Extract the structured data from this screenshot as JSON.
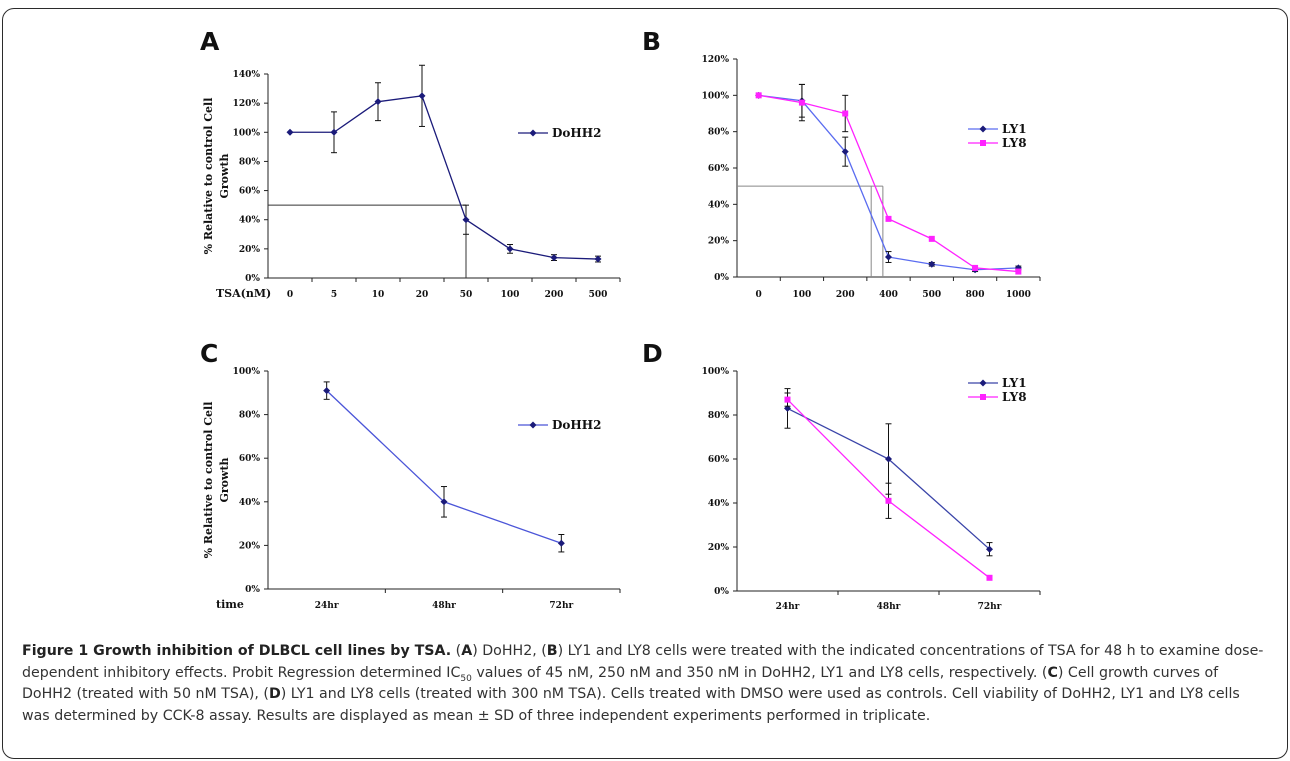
{
  "chart_data": [
    {
      "panel": "A",
      "type": "line",
      "categories": [
        "0",
        "5",
        "10",
        "20",
        "50",
        "100",
        "200",
        "500"
      ],
      "x_prefix": "TSA(nM)",
      "ylabel_line1": "% Relative to control Cell",
      "ylabel_line2": "Growth",
      "ylim": [
        0,
        140
      ],
      "yticks": [
        "0%",
        "20%",
        "40%",
        "60%",
        "80%",
        "100%",
        "120%",
        "140%"
      ],
      "series": [
        {
          "name": "DoHH2",
          "color": "#1b1b7a",
          "marker": "diamond",
          "values": [
            100,
            100,
            121,
            125,
            40,
            20,
            14,
            13
          ],
          "errors": [
            0,
            14,
            13,
            21,
            10,
            3,
            2,
            2
          ]
        }
      ],
      "ic50_value": 50,
      "ic50_x_index": 4,
      "legend": "right"
    },
    {
      "panel": "B",
      "type": "line",
      "categories": [
        "0",
        "100",
        "200",
        "400",
        "500",
        "800",
        "1000"
      ],
      "x_prefix": "",
      "ylabel_line1": "",
      "ylabel_line2": "",
      "ylim": [
        0,
        120
      ],
      "yticks": [
        "0%",
        "20%",
        "40%",
        "60%",
        "80%",
        "100%",
        "120%"
      ],
      "series": [
        {
          "name": "LY1",
          "color": "#1b1b7a",
          "line_color": "#5a6cf0",
          "marker": "diamond",
          "values": [
            100,
            97,
            69,
            11,
            7,
            4,
            5
          ],
          "errors": [
            0,
            9,
            8,
            3,
            1,
            1,
            1
          ]
        },
        {
          "name": "LY8",
          "color": "#ff22ff",
          "marker": "square",
          "values": [
            100,
            96,
            90,
            32,
            21,
            5,
            3
          ],
          "errors": [
            0,
            10,
            10,
            0,
            0,
            0,
            0
          ]
        }
      ],
      "ic50_value": 50,
      "ic50_x_index": [
        2.6,
        2.87
      ],
      "legend": "right"
    },
    {
      "panel": "C",
      "type": "line",
      "categories": [
        "24hr",
        "48hr",
        "72hr"
      ],
      "x_prefix": "time",
      "ylabel_line1": "% Relative to control Cell",
      "ylabel_line2": "Growth",
      "ylim": [
        0,
        100
      ],
      "yticks": [
        "0%",
        "20%",
        "40%",
        "60%",
        "80%",
        "100%"
      ],
      "series": [
        {
          "name": "DoHH2",
          "color": "#1b1b7a",
          "line_color": "#4b55d8",
          "marker": "diamond",
          "values": [
            91,
            40,
            21
          ],
          "errors": [
            4,
            7,
            4
          ]
        }
      ],
      "legend": "right"
    },
    {
      "panel": "D",
      "type": "line",
      "categories": [
        "24hr",
        "48hr",
        "72hr"
      ],
      "x_prefix": "",
      "ylabel_line1": "",
      "ylabel_line2": "",
      "ylim": [
        0,
        100
      ],
      "yticks": [
        "0%",
        "20%",
        "40%",
        "60%",
        "80%",
        "100%"
      ],
      "series": [
        {
          "name": "LY1",
          "color": "#1b1b7a",
          "line_color": "#3a44a8",
          "marker": "diamond",
          "values": [
            83,
            60,
            19
          ],
          "errors": [
            9,
            16,
            3
          ]
        },
        {
          "name": "LY8",
          "color": "#ff22ff",
          "marker": "square",
          "values": [
            87,
            41,
            6
          ],
          "errors": [
            3,
            8,
            0
          ]
        }
      ],
      "legend": "top-right"
    }
  ],
  "caption": {
    "title": "Figure 1 Growth inhibition of DLBCL cell lines by TSA.",
    "p1": " (",
    "A": "A",
    "p2": ") DoHH2, (",
    "B": "B",
    "p3": ") LY1 and LY8 cells were treated with the indicated concentrations of TSA for 48 h to examine dose-dependent inhibitory effects. Probit Regression determined IC",
    "sub": "50",
    "p4": " values of 45 nM, 250 nM and 350 nM in DoHH2, LY1 and LY8 cells, respectively. (",
    "C": "C",
    "p5": ") Cell growth curves of DoHH2 (treated with 50 nM TSA), (",
    "D": "D",
    "p6": ") LY1 and LY8 cells (treated with 300 nM TSA). Cells treated with DMSO were used as controls. Cell viability of DoHH2, LY1 and LY8 cells was determined by CCK-8 assay. Results are displayed as mean ± SD of three independent experiments performed in triplicate."
  }
}
